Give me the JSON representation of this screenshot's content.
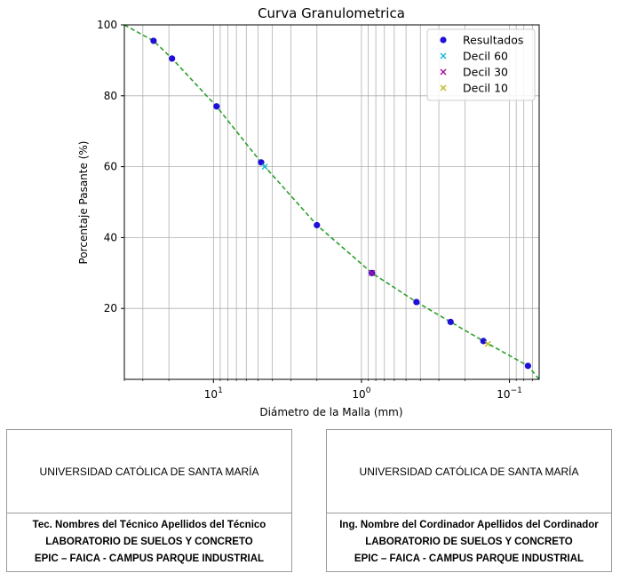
{
  "chart_data": {
    "type": "scatter",
    "title": "Curva Granulometrica",
    "xlabel": "Diámetro de la Malla (mm)",
    "ylabel": "Porcentaje Pasante (%)",
    "x_scale": "log",
    "x_axis_inverted": true,
    "xlim": [
      40,
      0.063
    ],
    "ylim": [
      0,
      100
    ],
    "x_tick_labels": [
      {
        "value": 10,
        "mantissa": "10",
        "exponent": "1"
      },
      {
        "value": 1,
        "mantissa": "10",
        "exponent": "0"
      },
      {
        "value": 0.1,
        "mantissa": "10",
        "exponent": "−1"
      }
    ],
    "y_ticks": [
      20,
      40,
      60,
      80,
      100
    ],
    "grid": true,
    "legend_position": "top-right",
    "legend": [
      "Resultados",
      "Decil 60",
      "Decil 30",
      "Decil 10"
    ],
    "colors": {
      "resultados": "#1f10d8",
      "curve": "#2ca02c",
      "decil60": "#17becf",
      "decil30": "#b0109f",
      "decil10": "#bcbd22"
    },
    "series": [
      {
        "name": "Resultados",
        "marker": "circle",
        "x": [
          25.4,
          19.05,
          9.525,
          4.76,
          2.0,
          0.85,
          0.425,
          0.25,
          0.15,
          0.075
        ],
        "y": [
          95.5,
          90.5,
          77.0,
          61.2,
          43.5,
          30.0,
          21.8,
          16.2,
          10.8,
          3.8
        ]
      },
      {
        "name": "Decil 60",
        "marker": "x",
        "x": [
          4.5
        ],
        "y": [
          60.0
        ]
      },
      {
        "name": "Decil 30",
        "marker": "x",
        "x": [
          0.85
        ],
        "y": [
          30.0
        ]
      },
      {
        "name": "Decil 10",
        "marker": "x",
        "x": [
          0.14
        ],
        "y": [
          10.0
        ]
      }
    ],
    "fit_curve": {
      "x": [
        40,
        25.4,
        19.05,
        9.525,
        4.76,
        2.0,
        0.85,
        0.425,
        0.25,
        0.15,
        0.075,
        0.063
      ],
      "y": [
        100,
        95.5,
        90.5,
        77.0,
        61.2,
        43.5,
        30.0,
        21.8,
        16.2,
        10.8,
        3.8,
        0
      ]
    }
  },
  "signatures": [
    {
      "institution": "UNIVERSIDAD CATÓLICA DE SANTA MARÍA",
      "lines": [
        "Tec. Nombres del Técnico Apellidos del Técnico",
        "LABORATORIO DE SUELOS Y CONCRETO",
        "EPIC – FAICA - CAMPUS PARQUE INDUSTRIAL"
      ]
    },
    {
      "institution": "UNIVERSIDAD CATÓLICA DE SANTA MARÍA",
      "lines": [
        "Ing. Nombre del Cordinador Apellidos del Cordinador",
        "LABORATORIO DE SUELOS Y CONCRETO",
        "EPIC – FAICA - CAMPUS PARQUE INDUSTRIAL"
      ]
    }
  ]
}
